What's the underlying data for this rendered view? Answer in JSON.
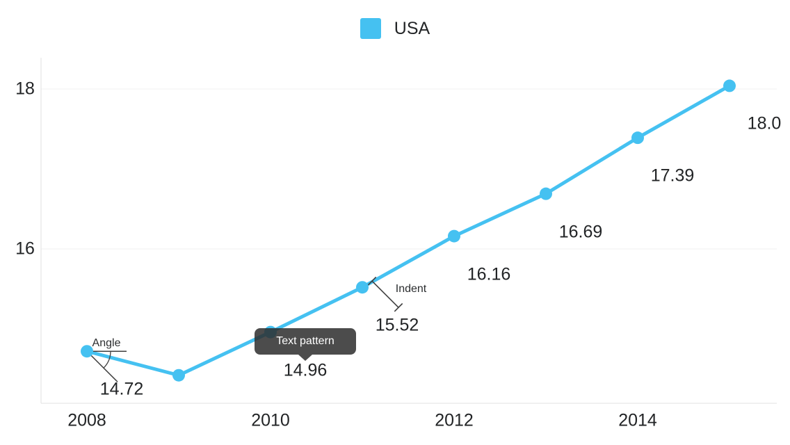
{
  "legend": {
    "items": [
      {
        "label": "USA",
        "color": "#45C1F1"
      }
    ]
  },
  "chart_data": {
    "type": "line",
    "title": "",
    "x": [
      2008,
      2009,
      2010,
      2011,
      2012,
      2013,
      2014,
      2015
    ],
    "x_tick_labels": [
      "2008",
      "2010",
      "2012",
      "2014"
    ],
    "y_tick_labels": [
      "16",
      "18"
    ],
    "ylim": [
      14.1,
      18.4
    ],
    "grid": "horizontal-only",
    "legend_position": "top-center",
    "series": [
      {
        "name": "USA",
        "color": "#45C1F1",
        "values": [
          14.72,
          14.42,
          14.96,
          15.52,
          16.16,
          16.69,
          17.39,
          18.04
        ],
        "point_labels": [
          "14.72",
          "",
          "14.96",
          "15.52",
          "16.16",
          "16.69",
          "17.39",
          "18.0"
        ]
      }
    ],
    "annotations": [
      {
        "type": "angle-callout",
        "text": "Angle",
        "year": 2008
      },
      {
        "type": "tooltip",
        "text": "Text pattern",
        "year": 2010
      },
      {
        "type": "indent-connector",
        "text": "Indent",
        "year": 2011
      }
    ]
  }
}
